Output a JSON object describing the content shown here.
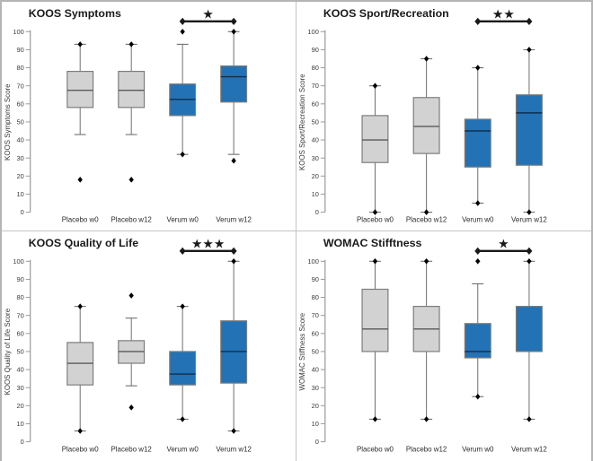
{
  "figure": {
    "layout": "2x2-boxplot-grid",
    "background": "#ffffff",
    "outer_border_color": "#b5b5b5",
    "divider_color": "#c4c4c4",
    "star_glyph": "★",
    "colors": {
      "placebo_fill": "#d2d2d2",
      "placebo_stroke": "#7d7d7d",
      "placebo_median": "#5a5a5a",
      "verum_fill": "#2272b5",
      "verum_stroke": "#7d7d7d",
      "verum_median": "#0f2f4f",
      "whisker": "#6f6f6f",
      "axis": "#9a9a9a",
      "tick_label": "#3a3a3a",
      "category_label": "#2b2b2b",
      "marker": "#000000",
      "significance": "#1a1a1a",
      "title": "#1a1a1a"
    }
  },
  "chart_data": [
    {
      "type": "box",
      "title": "KOOS Symptoms",
      "ylabel": "KOOS Symptoms Score",
      "xlabel": "",
      "ylim": [
        0,
        100
      ],
      "ytick_step": 10,
      "grid": false,
      "categories": [
        "Placebo w0",
        "Placebo w12",
        "Verum w0",
        "Verum w12"
      ],
      "significance": {
        "label": "*",
        "between": [
          "Verum w0",
          "Verum w12"
        ]
      },
      "boxes": [
        {
          "category": "Placebo w0",
          "group": "placebo",
          "whisker_low": 43,
          "q1": 58,
          "median": 67.5,
          "q3": 78,
          "whisker_high": 93,
          "point_markers": [
            93,
            18
          ]
        },
        {
          "category": "Placebo w12",
          "group": "placebo",
          "whisker_low": 43,
          "q1": 58,
          "median": 67.5,
          "q3": 78,
          "whisker_high": 93,
          "point_markers": [
            93,
            18
          ]
        },
        {
          "category": "Verum w0",
          "group": "verum",
          "whisker_low": 32,
          "q1": 53.5,
          "median": 62.5,
          "q3": 71,
          "whisker_high": 93,
          "point_markers": [
            100,
            32
          ]
        },
        {
          "category": "Verum w12",
          "group": "verum",
          "whisker_low": 32,
          "q1": 61,
          "median": 75,
          "q3": 81,
          "whisker_high": 100,
          "point_markers": [
            100,
            28.5
          ]
        }
      ]
    },
    {
      "type": "box",
      "title": "KOOS Sport/Recreation",
      "ylabel": "KOOS Sport/Recreation Score",
      "xlabel": "",
      "ylim": [
        0,
        100
      ],
      "ytick_step": 10,
      "grid": false,
      "categories": [
        "Placebo w0",
        "Placebo w12",
        "Verum w0",
        "Verum w12"
      ],
      "significance": {
        "label": "**",
        "between": [
          "Verum w0",
          "Verum w12"
        ]
      },
      "boxes": [
        {
          "category": "Placebo w0",
          "group": "placebo",
          "whisker_low": 0,
          "q1": 27.5,
          "median": 40,
          "q3": 53.5,
          "whisker_high": 70,
          "point_markers": [
            70,
            0
          ]
        },
        {
          "category": "Placebo w12",
          "group": "placebo",
          "whisker_low": 0,
          "q1": 32.5,
          "median": 47.5,
          "q3": 63.5,
          "whisker_high": 85,
          "point_markers": [
            85,
            0
          ]
        },
        {
          "category": "Verum w0",
          "group": "verum",
          "whisker_low": 5,
          "q1": 25,
          "median": 45,
          "q3": 51.5,
          "whisker_high": 80,
          "point_markers": [
            80,
            5
          ]
        },
        {
          "category": "Verum w12",
          "group": "verum",
          "whisker_low": 0,
          "q1": 26,
          "median": 55,
          "q3": 65,
          "whisker_high": 90,
          "point_markers": [
            90,
            0
          ]
        }
      ]
    },
    {
      "type": "box",
      "title": "KOOS Quality of Life",
      "ylabel": "KOOS Quality of Life Score",
      "xlabel": "",
      "ylim": [
        0,
        100
      ],
      "ytick_step": 10,
      "grid": false,
      "categories": [
        "Placebo w0",
        "Placebo w12",
        "Verum w0",
        "Verum w12"
      ],
      "significance": {
        "label": "***",
        "between": [
          "Verum w0",
          "Verum w12"
        ]
      },
      "boxes": [
        {
          "category": "Placebo w0",
          "group": "placebo",
          "whisker_low": 6,
          "q1": 31.5,
          "median": 43.5,
          "q3": 55,
          "whisker_high": 75,
          "point_markers": [
            75,
            6
          ]
        },
        {
          "category": "Placebo w12",
          "group": "placebo",
          "whisker_low": 31,
          "q1": 43.5,
          "median": 50,
          "q3": 56,
          "whisker_high": 68.5,
          "point_markers": [
            81,
            19
          ]
        },
        {
          "category": "Verum w0",
          "group": "verum",
          "whisker_low": 12.5,
          "q1": 31.5,
          "median": 37.5,
          "q3": 50,
          "whisker_high": 75,
          "point_markers": [
            75,
            12.5
          ]
        },
        {
          "category": "Verum w12",
          "group": "verum",
          "whisker_low": 6,
          "q1": 32.5,
          "median": 50,
          "q3": 67,
          "whisker_high": 100,
          "point_markers": [
            100,
            6
          ]
        }
      ]
    },
    {
      "type": "box",
      "title": "WOMAC Stifftness",
      "ylabel": "WOMAC Stiffness Score",
      "xlabel": "",
      "ylim": [
        0,
        100
      ],
      "ytick_step": 10,
      "grid": false,
      "categories": [
        "Placebo w0",
        "Placebo w12",
        "Verum w0",
        "Verum w12"
      ],
      "significance": {
        "label": "*",
        "between": [
          "Verum w0",
          "Verum w12"
        ]
      },
      "boxes": [
        {
          "category": "Placebo w0",
          "group": "placebo",
          "whisker_low": 12.5,
          "q1": 50,
          "median": 62.5,
          "q3": 84.5,
          "whisker_high": 100,
          "point_markers": [
            100,
            12.5
          ]
        },
        {
          "category": "Placebo w12",
          "group": "placebo",
          "whisker_low": 12.5,
          "q1": 50,
          "median": 62.5,
          "q3": 75,
          "whisker_high": 100,
          "point_markers": [
            100,
            12.5
          ]
        },
        {
          "category": "Verum w0",
          "group": "verum",
          "whisker_low": 25,
          "q1": 46.5,
          "median": 50,
          "q3": 65.5,
          "whisker_high": 87.5,
          "point_markers": [
            100,
            25
          ]
        },
        {
          "category": "Verum w12",
          "group": "verum",
          "whisker_low": 12.5,
          "q1": 50,
          "median": null,
          "q3": 75,
          "whisker_high": 100,
          "point_markers": [
            100,
            12.5
          ]
        }
      ]
    }
  ]
}
